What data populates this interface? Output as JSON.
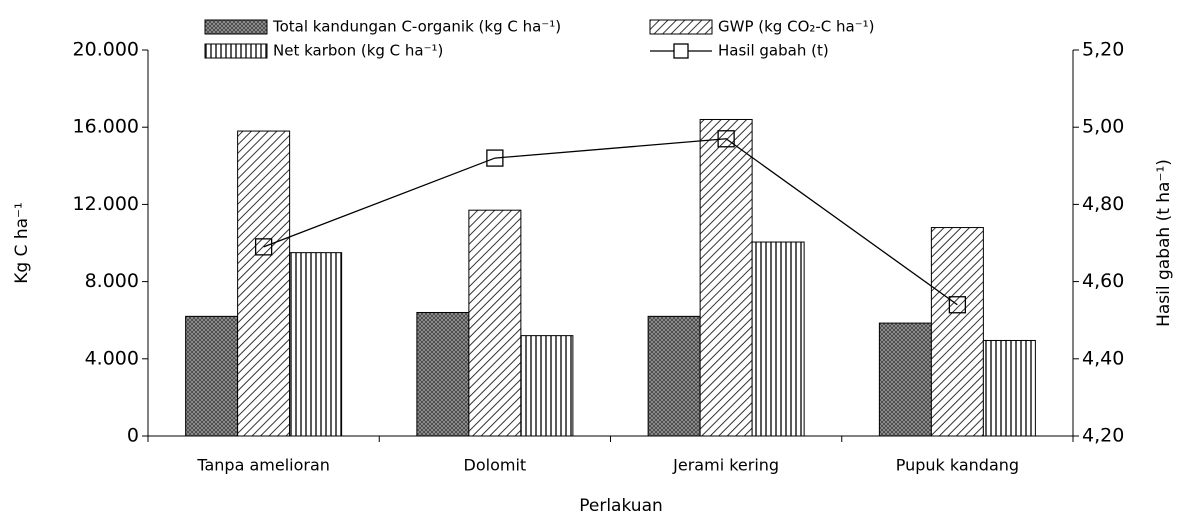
{
  "chart_data": {
    "type": "bar",
    "x_label": "Perlakuan",
    "y_label": "Kg C ha⁻¹",
    "y2_label": "Hasil gabah (t ha⁻¹)",
    "categories": [
      "Tanpa amelioran",
      "Dolomit",
      "Jerami kering",
      "Pupuk kandang"
    ],
    "series": [
      {
        "name": "Total kandungan C-organik (kg C ha⁻¹)",
        "color": "#555555",
        "values": [
          6200,
          6400,
          6200,
          5850
        ]
      },
      {
        "name": "GWP (kg CO₂-C ha⁻¹)",
        "color": "#333333",
        "values": [
          15800,
          11700,
          16400,
          10800
        ]
      },
      {
        "name": "Net karbon (kg C ha⁻¹)",
        "color": "#222222",
        "values": [
          9500,
          5200,
          10050,
          4950
        ]
      },
      {
        "name": "Hasil gabah (t)",
        "color": "#000000",
        "type": "line",
        "axis": "y2",
        "values": [
          4.69,
          4.92,
          4.97,
          4.54
        ]
      }
    ],
    "ylim": [
      0,
      20000
    ],
    "yticks": [
      0,
      {
        "value": 4000,
        "label": "4.000"
      },
      {
        "value": 8000,
        "label": "8.000"
      },
      {
        "value": 12000,
        "label": "12.000"
      },
      {
        "value": 16000,
        "label": "16.000"
      },
      {
        "value": 20000,
        "label": "20.000"
      }
    ],
    "y2lim": [
      4.2,
      5.2
    ],
    "y2ticks": [
      {
        "value": 4.2,
        "label": "4,20"
      },
      {
        "value": 4.4,
        "label": "4,40"
      },
      {
        "value": 4.6,
        "label": "4,60"
      },
      {
        "value": 4.8,
        "label": "4,80"
      },
      {
        "value": 5.0,
        "label": "5,00"
      },
      {
        "value": 5.2,
        "label": "5,20"
      }
    ],
    "grid": false
  }
}
